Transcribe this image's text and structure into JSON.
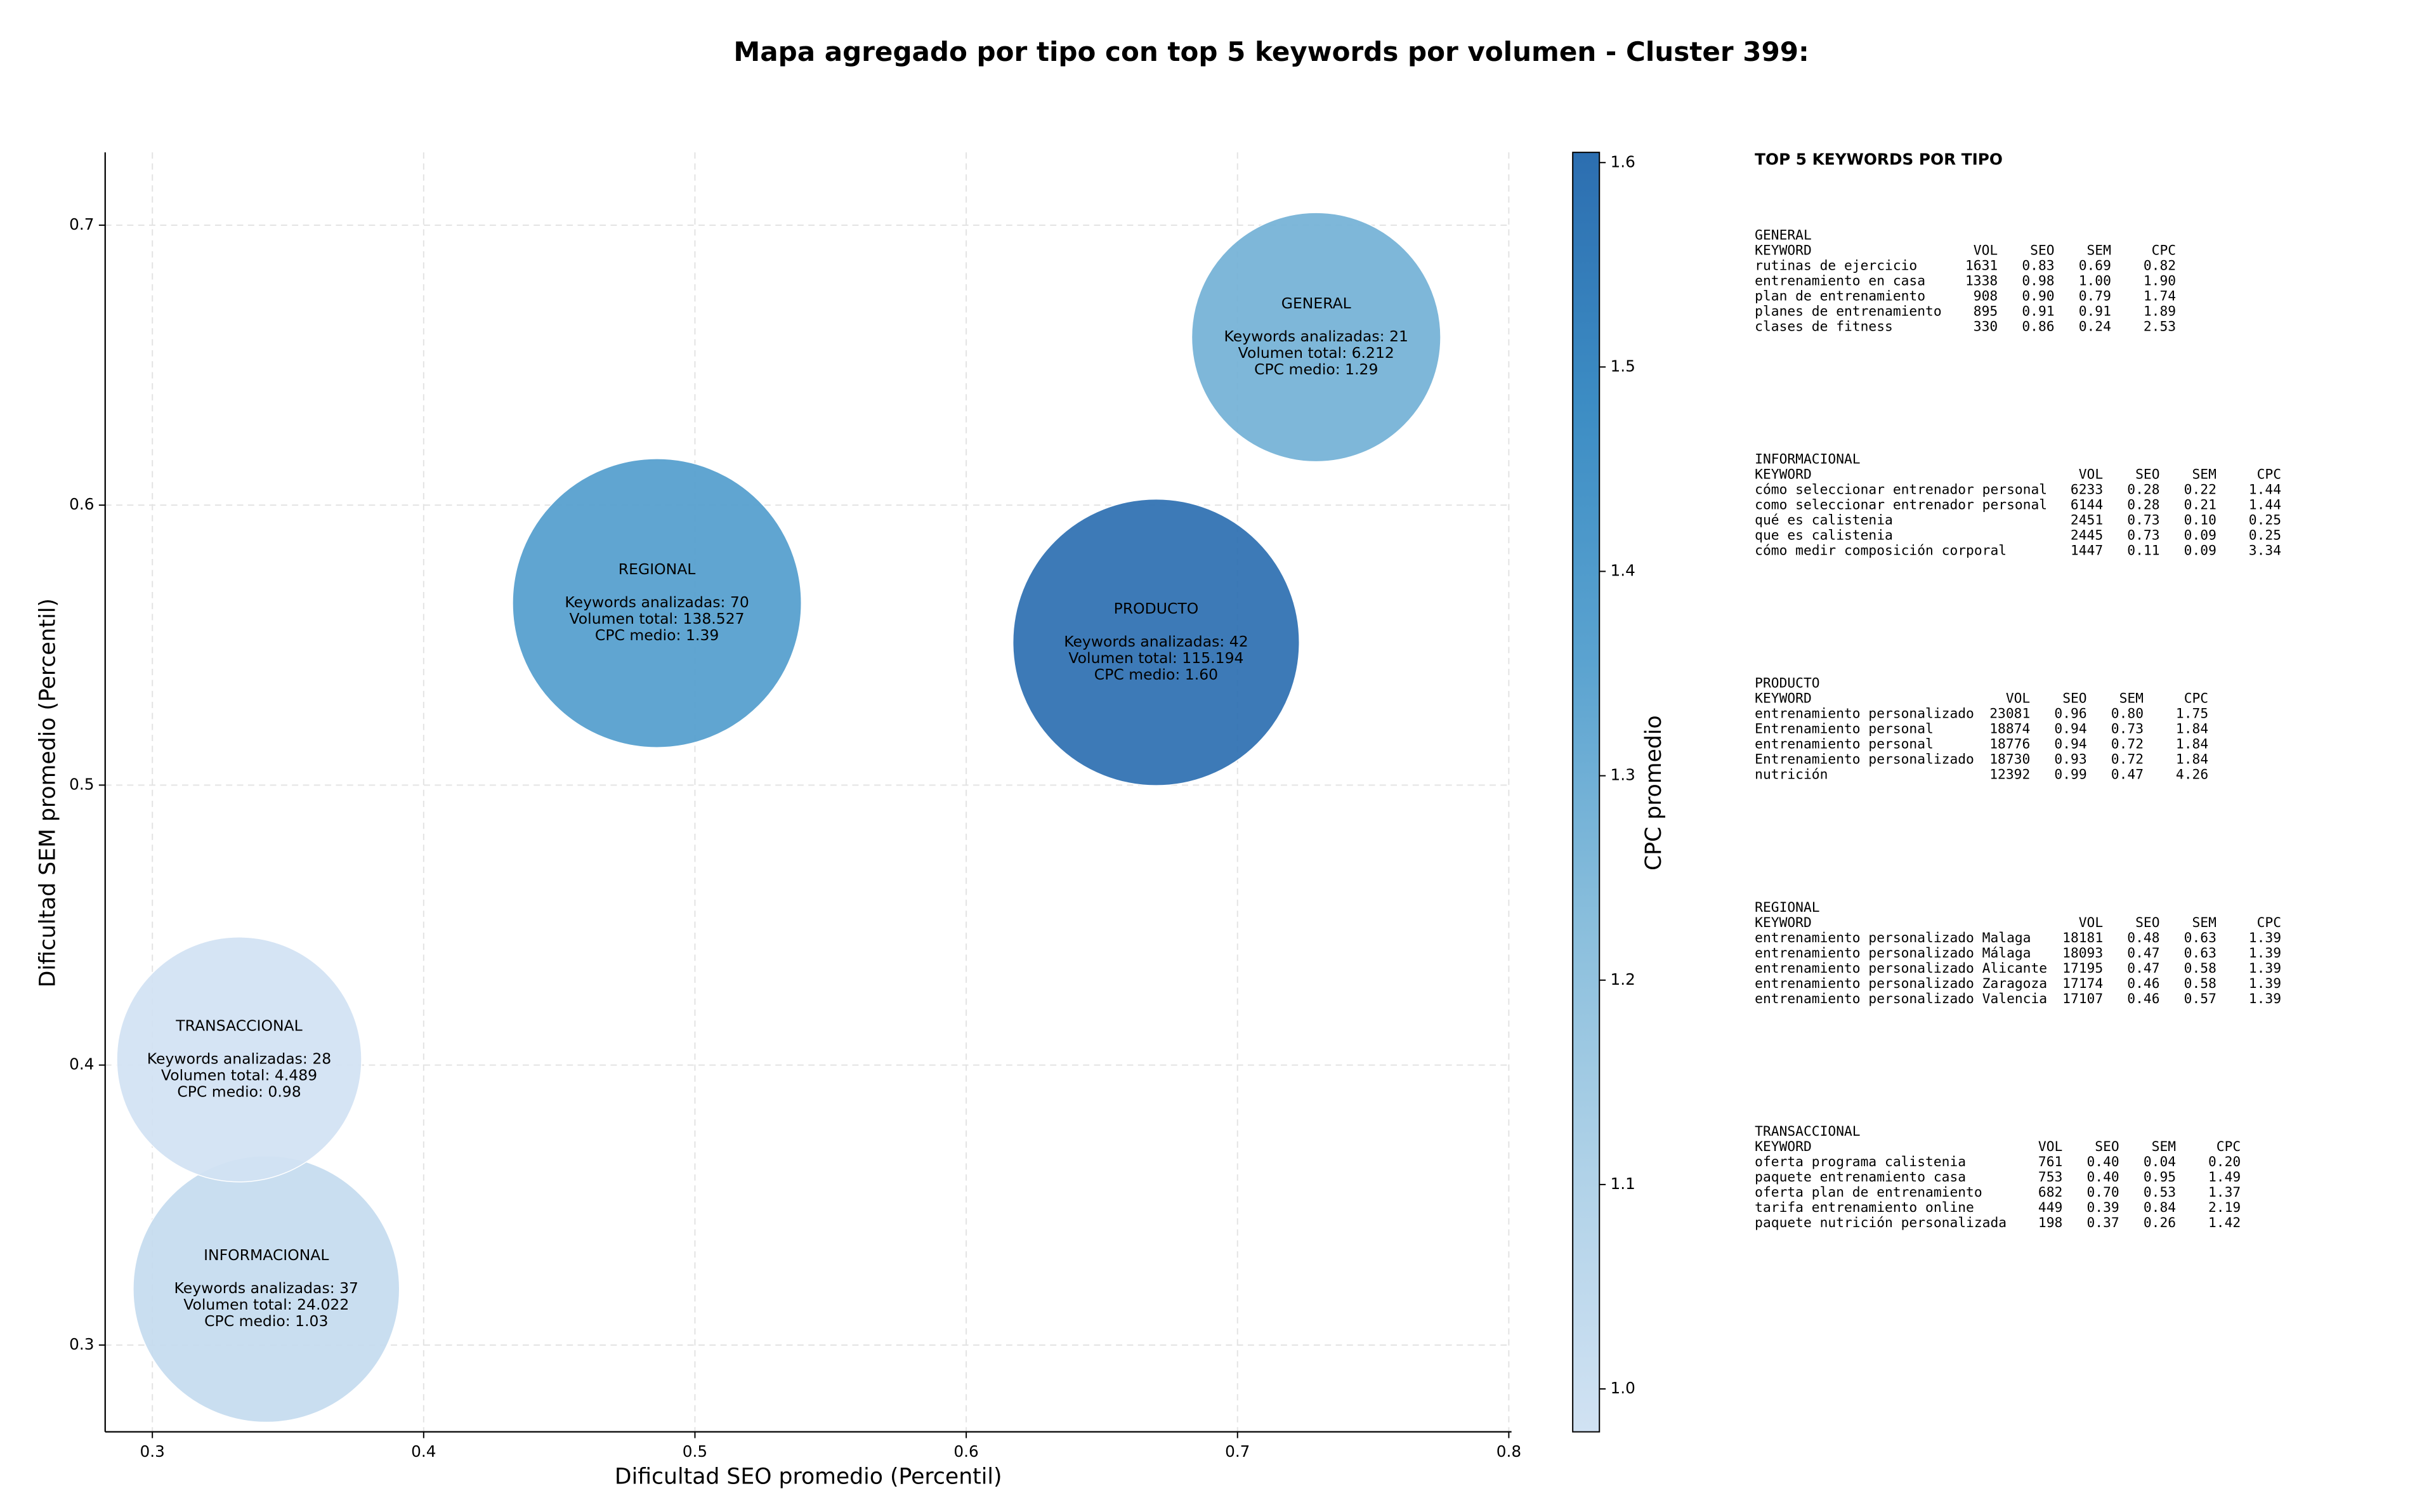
{
  "chart_data": {
    "type": "bubble",
    "title": "Mapa agregado por tipo con top 5 keywords por volumen - Cluster 399:",
    "xlabel": "Dificultad SEO promedio (Percentil)",
    "ylabel": "Dificultad SEM promedio (Percentil)",
    "xlim": [
      0.2826,
      0.801
    ],
    "ylim": [
      0.269,
      0.726
    ],
    "xticks": [
      0.3,
      0.4,
      0.5,
      0.6,
      0.7,
      0.8
    ],
    "yticks": [
      0.3,
      0.4,
      0.5,
      0.6,
      0.7
    ],
    "grid": true,
    "colorbar": {
      "label": "CPC promedio",
      "lim": [
        0.979,
        1.605
      ],
      "ticks": [
        {
          "value": 1,
          "label": "1.0"
        },
        1.1,
        1.2,
        1.3,
        1.4,
        1.5,
        1.6
      ],
      "colormap": [
        "#d1e2f3",
        "#b0d2e8",
        "#89bedc",
        "#5ba3d0",
        "#3d8dc4",
        "#2c6eb0"
      ]
    },
    "points": [
      {
        "name": "GENERAL",
        "x": 0.729,
        "y": 0.66,
        "volume": 6212,
        "cpc": 1.29,
        "labels": [
          "Keywords analizadas: 21",
          "Volumen total: 6.212",
          "CPC medio: 1.29"
        ]
      },
      {
        "name": "INFORMACIONAL",
        "x": 0.342,
        "y": 0.32,
        "volume": 24022,
        "cpc": 1.03,
        "labels": [
          "Keywords analizadas: 37",
          "Volumen total: 24.022",
          "CPC medio: 1.03"
        ]
      },
      {
        "name": "PRODUCTO",
        "x": 0.67,
        "y": 0.551,
        "volume": 115194,
        "cpc": 1.6,
        "labels": [
          "Keywords analizadas: 42",
          "Volumen total: 115.194",
          "CPC medio: 1.60"
        ]
      },
      {
        "name": "REGIONAL",
        "x": 0.486,
        "y": 0.565,
        "volume": 138527,
        "cpc": 1.39,
        "labels": [
          "Keywords analizadas: 70",
          "Volumen total: 138.527",
          "CPC medio: 1.39"
        ]
      },
      {
        "name": "TRANSACCIONAL",
        "x": 0.332,
        "y": 0.402,
        "volume": 4489,
        "cpc": 0.98,
        "labels": [
          "Keywords analizadas: 28",
          "Volumen total: 4.489",
          "CPC medio: 0.98"
        ]
      }
    ]
  },
  "keywords_panel": {
    "title": "TOP 5 KEYWORDS POR TIPO",
    "blocks": [
      {
        "name": "GENERAL",
        "header": [
          "KEYWORD",
          "VOL",
          "SEO",
          "SEM",
          "CPC"
        ],
        "rows": [
          [
            "rutinas de ejercicio",
            "1631",
            "0.83",
            "0.69",
            "0.82"
          ],
          [
            "entrenamiento en casa",
            "1338",
            "0.98",
            "1.00",
            "1.90"
          ],
          [
            "plan de entrenamiento",
            "908",
            "0.90",
            "0.79",
            "1.74"
          ],
          [
            "planes de entrenamiento",
            "895",
            "0.91",
            "0.91",
            "1.89"
          ],
          [
            "clases de fitness",
            "330",
            "0.86",
            "0.24",
            "2.53"
          ]
        ]
      },
      {
        "name": "INFORMACIONAL",
        "header": [
          "KEYWORD",
          "VOL",
          "SEO",
          "SEM",
          "CPC"
        ],
        "rows": [
          [
            "cómo seleccionar entrenador personal",
            "6233",
            "0.28",
            "0.22",
            "1.44"
          ],
          [
            "como seleccionar entrenador personal",
            "6144",
            "0.28",
            "0.21",
            "1.44"
          ],
          [
            "qué es calistenia",
            "2451",
            "0.73",
            "0.10",
            "0.25"
          ],
          [
            "que es calistenia",
            "2445",
            "0.73",
            "0.09",
            "0.25"
          ],
          [
            "cómo medir composición corporal",
            "1447",
            "0.11",
            "0.09",
            "3.34"
          ]
        ]
      },
      {
        "name": "PRODUCTO",
        "header": [
          "KEYWORD",
          "VOL",
          "SEO",
          "SEM",
          "CPC"
        ],
        "rows": [
          [
            "entrenamiento personalizado",
            "23081",
            "0.96",
            "0.80",
            "1.75"
          ],
          [
            "Entrenamiento personal",
            "18874",
            "0.94",
            "0.73",
            "1.84"
          ],
          [
            "entrenamiento personal",
            "18776",
            "0.94",
            "0.72",
            "1.84"
          ],
          [
            "Entrenamiento personalizado",
            "18730",
            "0.93",
            "0.72",
            "1.84"
          ],
          [
            "nutrición",
            "12392",
            "0.99",
            "0.47",
            "4.26"
          ]
        ]
      },
      {
        "name": "REGIONAL",
        "header": [
          "KEYWORD",
          "VOL",
          "SEO",
          "SEM",
          "CPC"
        ],
        "rows": [
          [
            "entrenamiento personalizado Malaga",
            "18181",
            "0.48",
            "0.63",
            "1.39"
          ],
          [
            "entrenamiento personalizado Málaga",
            "18093",
            "0.47",
            "0.63",
            "1.39"
          ],
          [
            "entrenamiento personalizado Alicante",
            "17195",
            "0.47",
            "0.58",
            "1.39"
          ],
          [
            "entrenamiento personalizado Zaragoza",
            "17174",
            "0.46",
            "0.58",
            "1.39"
          ],
          [
            "entrenamiento personalizado Valencia",
            "17107",
            "0.46",
            "0.57",
            "1.39"
          ]
        ]
      },
      {
        "name": "TRANSACCIONAL",
        "header": [
          "KEYWORD",
          "VOL",
          "SEO",
          "SEM",
          "CPC"
        ],
        "rows": [
          [
            "oferta programa calistenia",
            "761",
            "0.40",
            "0.04",
            "0.20"
          ],
          [
            "paquete entrenamiento casa",
            "753",
            "0.40",
            "0.95",
            "1.49"
          ],
          [
            "oferta plan de entrenamiento",
            "682",
            "0.70",
            "0.53",
            "1.37"
          ],
          [
            "tarifa entrenamiento online",
            "449",
            "0.39",
            "0.84",
            "2.19"
          ],
          [
            "paquete nutrición personalizada",
            "198",
            "0.37",
            "0.26",
            "1.42"
          ]
        ]
      }
    ]
  }
}
